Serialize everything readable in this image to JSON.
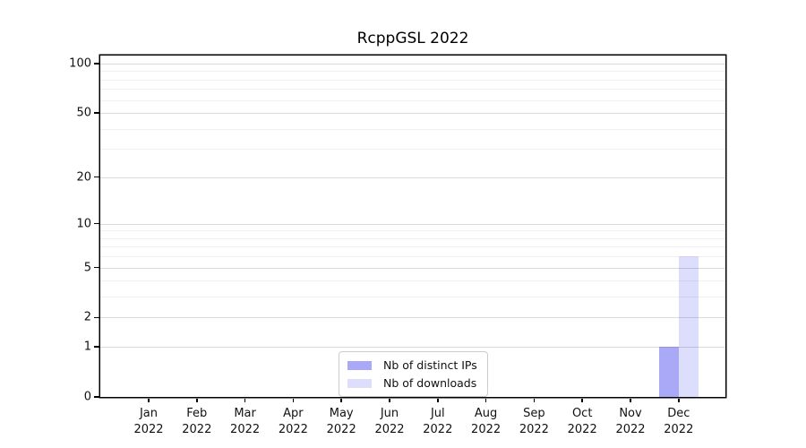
{
  "title": "RcppGSL 2022",
  "chart_data": {
    "type": "bar",
    "title": "RcppGSL 2022",
    "categories": [
      "Jan 2022",
      "Feb 2022",
      "Mar 2022",
      "Apr 2022",
      "May 2022",
      "Jun 2022",
      "Jul 2022",
      "Aug 2022",
      "Sep 2022",
      "Oct 2022",
      "Nov 2022",
      "Dec 2022"
    ],
    "series": [
      {
        "name": "Nb of distinct IPs",
        "color": "rgba(51,51,238,0.42)",
        "solid_color": "#a9a9f5",
        "values": [
          0,
          0,
          0,
          0,
          0,
          0,
          0,
          0,
          0,
          0,
          0,
          1
        ]
      },
      {
        "name": "Nb of downloads",
        "color": "rgba(51,51,238,0.17)",
        "solid_color": "#dcdcfa",
        "values": [
          0,
          0,
          0,
          0,
          0,
          0,
          0,
          0,
          0,
          0,
          0,
          6
        ]
      }
    ],
    "xlabel": "",
    "ylabel": "",
    "yscale": "log1p",
    "ylim": [
      0,
      112
    ],
    "yticks_major": [
      0,
      1,
      2,
      5,
      10,
      20,
      50,
      100
    ],
    "yticks_minor": [
      3,
      4,
      6,
      7,
      8,
      9,
      30,
      40,
      60,
      70,
      80,
      90
    ],
    "grid": true,
    "legend_position": "lower-center-inside",
    "axis_color": "#000000",
    "grid_major_color": "#d9d9d9",
    "grid_minor_color": "#f0f0f0"
  }
}
